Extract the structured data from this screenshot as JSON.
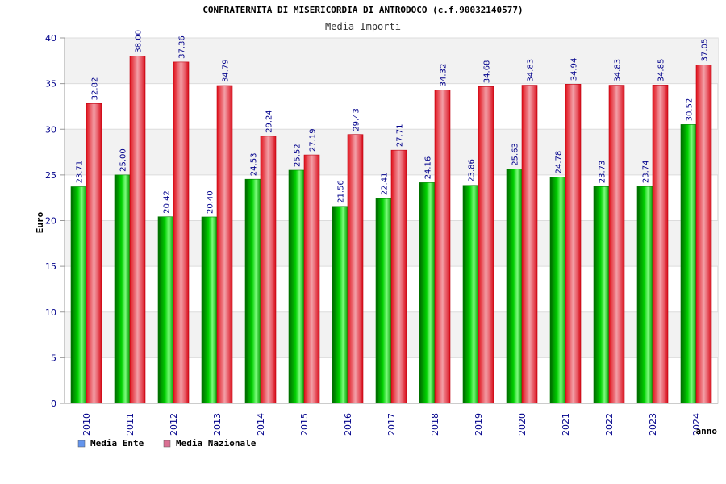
{
  "chart_data": {
    "type": "bar",
    "title": "CONFRATERNITA DI MISERICORDIA DI ANTRODOCO (c.f.90032140577)",
    "subtitle": "Media Importi",
    "ylabel": "Euro",
    "xlabel": "anno",
    "ylim": [
      0,
      40
    ],
    "yticks": [
      0,
      5,
      10,
      15,
      20,
      25,
      30,
      35,
      40
    ],
    "grid": true,
    "legend_position": "bottom-left",
    "categories": [
      "2010",
      "2011",
      "2012",
      "2013",
      "2014",
      "2015",
      "2016",
      "2017",
      "2018",
      "2019",
      "2020",
      "2021",
      "2022",
      "2023",
      "2024"
    ],
    "series": [
      {
        "name": "Media Ente",
        "color": "#00b000",
        "legend_color": "#6495ed",
        "values": [
          23.71,
          25.0,
          20.42,
          20.4,
          24.53,
          25.52,
          21.56,
          22.41,
          24.16,
          23.86,
          25.63,
          24.78,
          23.73,
          23.74,
          30.52
        ],
        "labels": [
          "23.71",
          "25.00",
          "20.42",
          "20.40",
          "24.53",
          "25.52",
          "21.56",
          "22.41",
          "24.16",
          "23.86",
          "25.63",
          "24.78",
          "23.73",
          "23.74",
          "30.52"
        ]
      },
      {
        "name": "Media Nazionale",
        "color": "#e8141e",
        "legend_color": "#db7093",
        "values": [
          32.82,
          38.0,
          37.36,
          34.79,
          29.24,
          27.19,
          29.43,
          27.71,
          34.32,
          34.68,
          34.83,
          34.94,
          34.83,
          34.85,
          37.05
        ],
        "labels": [
          "32.82",
          "38.00",
          "37.36",
          "34.79",
          "29.24",
          "27.19",
          "29.43",
          "27.71",
          "34.32",
          "34.68",
          "34.83",
          "34.94",
          "34.83",
          "34.85",
          "37.05"
        ]
      }
    ]
  }
}
